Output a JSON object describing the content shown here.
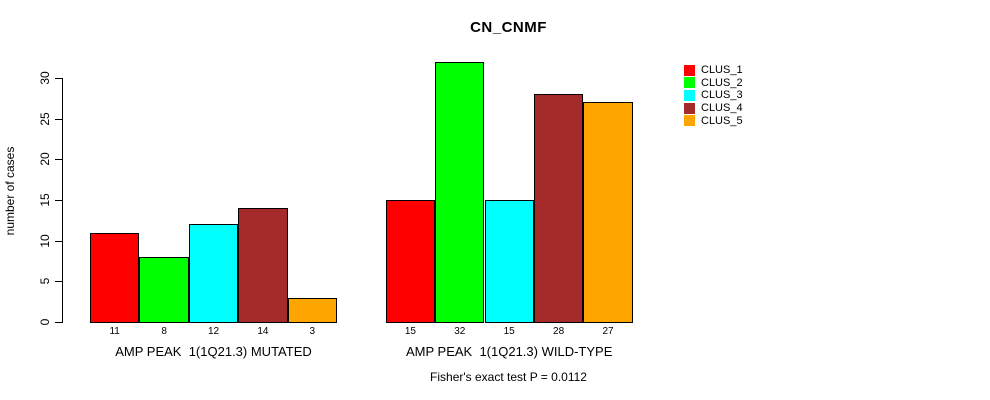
{
  "chart_data": {
    "type": "bar",
    "title": "CN_CNMF",
    "ylabel": "number of cases",
    "xlabel": "",
    "ylim": [
      0,
      30
    ],
    "yticks": [
      0,
      5,
      10,
      15,
      20,
      25,
      30
    ],
    "grid": false,
    "legend_position": "right",
    "bar_value_labels_shown": true,
    "categories": [
      "AMP PEAK  1(1Q21.3) MUTATED",
      "AMP PEAK  1(1Q21.3) WILD-TYPE"
    ],
    "series": [
      {
        "name": "CLUS_1",
        "color": "#FF0000",
        "values": [
          11,
          15
        ]
      },
      {
        "name": "CLUS_2",
        "color": "#00FF00",
        "values": [
          8,
          32
        ]
      },
      {
        "name": "CLUS_3",
        "color": "#00FFFF",
        "values": [
          12,
          15
        ]
      },
      {
        "name": "CLUS_4",
        "color": "#A52A2A",
        "values": [
          14,
          28
        ]
      },
      {
        "name": "CLUS_5",
        "color": "#FFA500",
        "values": [
          3,
          27
        ]
      }
    ],
    "annotation": "Fisher's exact test P = 0.0112"
  }
}
